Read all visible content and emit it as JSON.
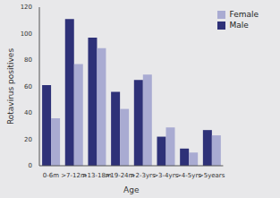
{
  "chart_data": {
    "type": "bar",
    "x_label": "Age",
    "y_label": "Rotavirus positives",
    "categories": [
      "0-6m",
      ">7-12m",
      ">13-18m",
      ">19-24m",
      ">2-3yrs",
      ">3-4yrs",
      ">4-5yrs",
      ">5years"
    ],
    "series": [
      {
        "name": "Male",
        "color": "#2e3178",
        "values": [
          61,
          111,
          97,
          56,
          65,
          22,
          13,
          27
        ]
      },
      {
        "name": "Female",
        "color": "#a9abd2",
        "values": [
          36,
          77,
          89,
          43,
          69,
          29,
          10,
          23
        ]
      }
    ],
    "ylim": [
      0,
      120
    ],
    "yticks": [
      0,
      20,
      40,
      60,
      80,
      100,
      120
    ],
    "grid": false,
    "legend": "upper right"
  }
}
